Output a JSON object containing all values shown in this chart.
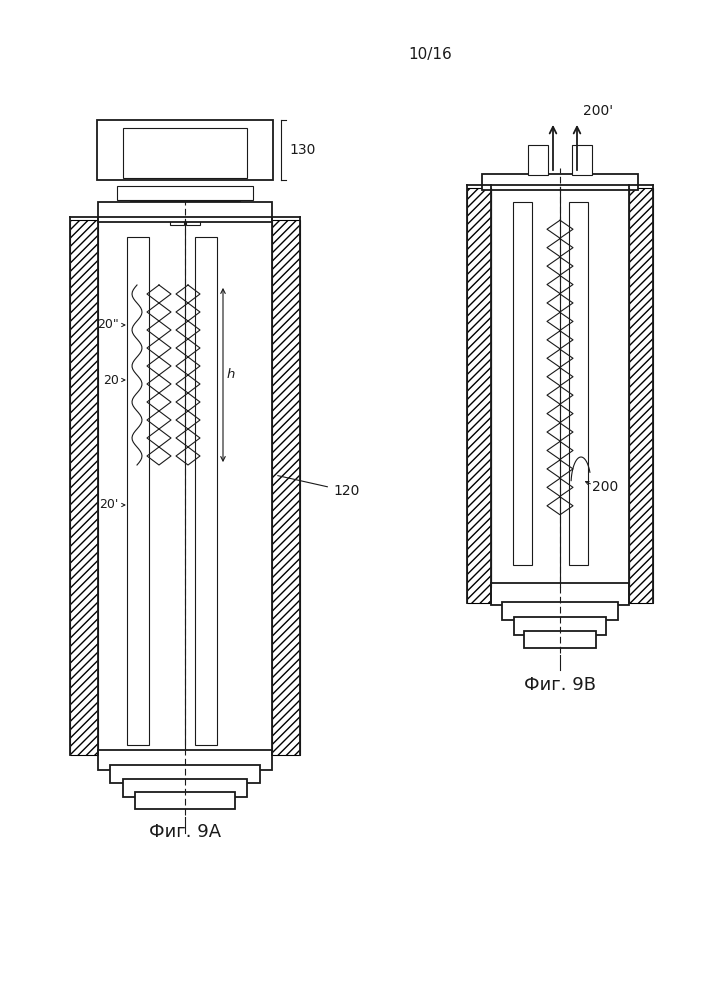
{
  "page_label": "10/16",
  "fig9a_label": "Фиг. 9А",
  "fig9b_label": "Фиг. 9В",
  "label_130": "130",
  "label_120": "120",
  "label_20": "20",
  "label_20p": "20'",
  "label_20pp": "20\"",
  "label_h": "h",
  "label_200": "200",
  "label_200p": "200'",
  "bg_color": "#ffffff",
  "line_color": "#1a1a1a"
}
